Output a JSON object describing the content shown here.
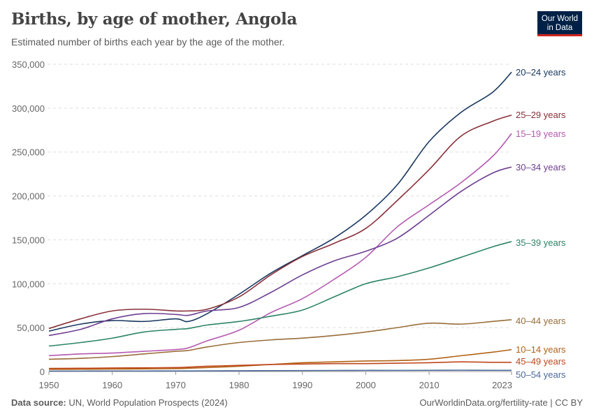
{
  "header": {
    "title": "Births, by age of mother, Angola",
    "subtitle": "Estimated number of births each year by the age of the mother.",
    "logo_text": "Our World in Data"
  },
  "footer": {
    "source_label": "Data source:",
    "source_text": "UN, World Population Prospects (2024)",
    "right_text": "OurWorldinData.org/fertility-rate | CC BY"
  },
  "chart_data": {
    "type": "line",
    "title": "Births, by age of mother, Angola",
    "xlabel": "",
    "ylabel": "",
    "xlim": [
      1950,
      2023
    ],
    "ylim": [
      0,
      350000
    ],
    "grid": "horizontal dashed",
    "legend": "line-end labels (right)",
    "x_ticks": [
      "1950",
      "1960",
      "1970",
      "1980",
      "1990",
      "2000",
      "2010",
      "2023"
    ],
    "y_ticks": [
      "0",
      "50,000",
      "100,000",
      "150,000",
      "200,000",
      "250,000",
      "300,000",
      "350,000"
    ],
    "x": [
      1950,
      1955,
      1960,
      1965,
      1970,
      1972,
      1975,
      1980,
      1985,
      1990,
      1995,
      2000,
      2005,
      2010,
      2015,
      2020,
      2023
    ],
    "series": [
      {
        "name": "20–24 years",
        "color": "#18375f",
        "values": [
          46000,
          54000,
          58000,
          57000,
          60000,
          57000,
          66000,
          88000,
          112000,
          132000,
          152000,
          178000,
          213000,
          262000,
          295000,
          318000,
          341000
        ]
      },
      {
        "name": "25–29 years",
        "color": "#883039",
        "values": [
          49000,
          60000,
          69000,
          71000,
          69000,
          69000,
          71000,
          85000,
          110000,
          131000,
          146000,
          163000,
          195000,
          230000,
          268000,
          285000,
          292000
        ]
      },
      {
        "name": "15–19 years",
        "color": "#b55ab0",
        "values": [
          18000,
          20000,
          21000,
          23000,
          25000,
          27000,
          35000,
          47000,
          67000,
          83000,
          105000,
          130000,
          165000,
          190000,
          215000,
          245000,
          271000
        ]
      },
      {
        "name": "30–34 years",
        "color": "#6d3e91",
        "values": [
          41000,
          48000,
          60000,
          66000,
          65000,
          64000,
          69000,
          73000,
          90000,
          110000,
          126000,
          137000,
          152000,
          178000,
          205000,
          226000,
          233000
        ]
      },
      {
        "name": "35–39 years",
        "color": "#2c8465",
        "values": [
          29000,
          33000,
          38000,
          45000,
          48000,
          49000,
          53000,
          57000,
          63000,
          70000,
          85000,
          100000,
          108000,
          118000,
          130000,
          142000,
          148000
        ]
      },
      {
        "name": "40–44 years",
        "color": "#996d39",
        "values": [
          14000,
          15000,
          17000,
          20000,
          23000,
          24000,
          28000,
          33000,
          36000,
          38000,
          41000,
          45000,
          50000,
          55000,
          54000,
          57000,
          59000
        ]
      },
      {
        "name": "10–14 years",
        "color": "#b16214",
        "values": [
          2500,
          2600,
          2800,
          3000,
          3300,
          3700,
          4500,
          6000,
          8000,
          10000,
          11000,
          12000,
          12500,
          14000,
          18000,
          22000,
          25000
        ]
      },
      {
        "name": "45–49 years",
        "color": "#c0461c",
        "values": [
          3500,
          3700,
          4000,
          4200,
          4500,
          5000,
          6000,
          7000,
          8000,
          8500,
          9000,
          9000,
          9500,
          10000,
          11000,
          10500,
          10500
        ]
      },
      {
        "name": "50–54 years",
        "color": "#4c6a9c",
        "values": [
          500,
          500,
          600,
          600,
          700,
          700,
          800,
          900,
          1000,
          1100,
          1200,
          1300,
          1300,
          1400,
          1500,
          1400,
          1400
        ]
      }
    ]
  }
}
